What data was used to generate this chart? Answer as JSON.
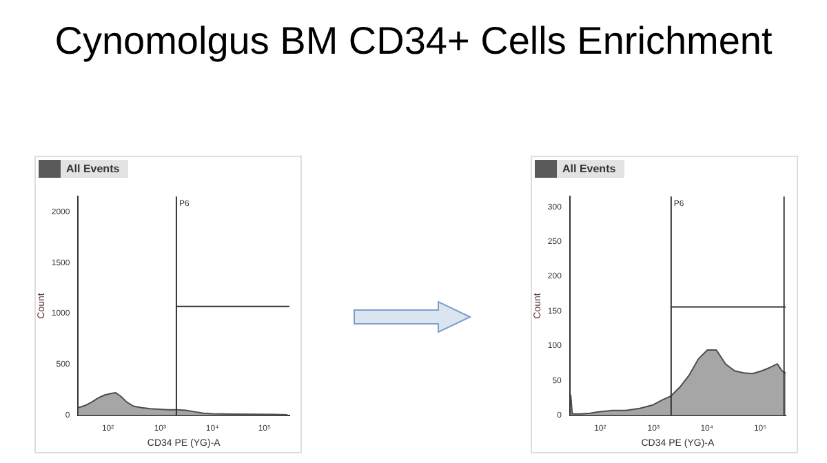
{
  "chart_data": [
    {
      "type": "area",
      "title": "Cynomolgus BM CD34+ Cells Enrichment",
      "annotations": [
        "All Events"
      ],
      "xlabel": "CD34 PE (YG)-A",
      "ylabel": "Count",
      "log": "x",
      "x": [
        27,
        36,
        49,
        65,
        87,
        117,
        141,
        174,
        229,
        309,
        447,
        661,
        977,
        1445,
        2089,
        3090,
        4571,
        6761,
        10000,
        21878,
        58884,
        154882,
        275423
      ],
      "series": [
        {
          "color": "#a6a6a6",
          "values": [
            75,
            95,
            130,
            170,
            200,
            215,
            222,
            190,
            130,
            90,
            75,
            65,
            60,
            55,
            55,
            50,
            35,
            20,
            15,
            12,
            10,
            8,
            5
          ]
        }
      ],
      "xlim": [
        27,
        300000
      ],
      "ylim": [
        0,
        2150
      ],
      "xticks": [
        {
          "value": 100,
          "label": "10²"
        },
        {
          "value": 1000,
          "label": "10³"
        },
        {
          "value": 10000,
          "label": "10⁴"
        },
        {
          "value": 100000,
          "label": "10⁵"
        }
      ],
      "yticks": [
        0,
        500,
        1000,
        1500,
        2000
      ],
      "ref_lines": [
        {
          "axis": "x",
          "value": 2050,
          "label": "P6"
        },
        {
          "axis": "y",
          "value": 1070
        }
      ]
    },
    {
      "type": "area",
      "annotations": [
        "All Events"
      ],
      "xlabel": "CD34 PE (YG)-A",
      "ylabel": "Count",
      "log": "x",
      "x": [
        28,
        30,
        44,
        65,
        93,
        170,
        302,
        550,
        977,
        1450,
        2140,
        3160,
        4680,
        6920,
        10200,
        15100,
        22400,
        33100,
        49000,
        72400,
        107000,
        155000,
        209000,
        257000,
        300000
      ],
      "series": [
        {
          "color": "#a6a6a6",
          "values": [
            30,
            2,
            2,
            3,
            5,
            7,
            7,
            10,
            15,
            22,
            28,
            41,
            58,
            81,
            94,
            94,
            74,
            64,
            61,
            60,
            64,
            69,
            74,
            64,
            61
          ]
        }
      ],
      "xlim": [
        27,
        300000
      ],
      "ylim": [
        0,
        315
      ],
      "xticks": [
        {
          "value": 100,
          "label": "10²"
        },
        {
          "value": 1000,
          "label": "10³"
        },
        {
          "value": 10000,
          "label": "10⁴"
        },
        {
          "value": 100000,
          "label": "10⁵"
        }
      ],
      "yticks": [
        0,
        50,
        100,
        150,
        200,
        250,
        300
      ],
      "ref_lines": [
        {
          "axis": "x",
          "value": 2140,
          "label": "P6"
        },
        {
          "axis": "y",
          "value": 156
        },
        {
          "axis": "x",
          "value": 280000
        }
      ]
    }
  ]
}
